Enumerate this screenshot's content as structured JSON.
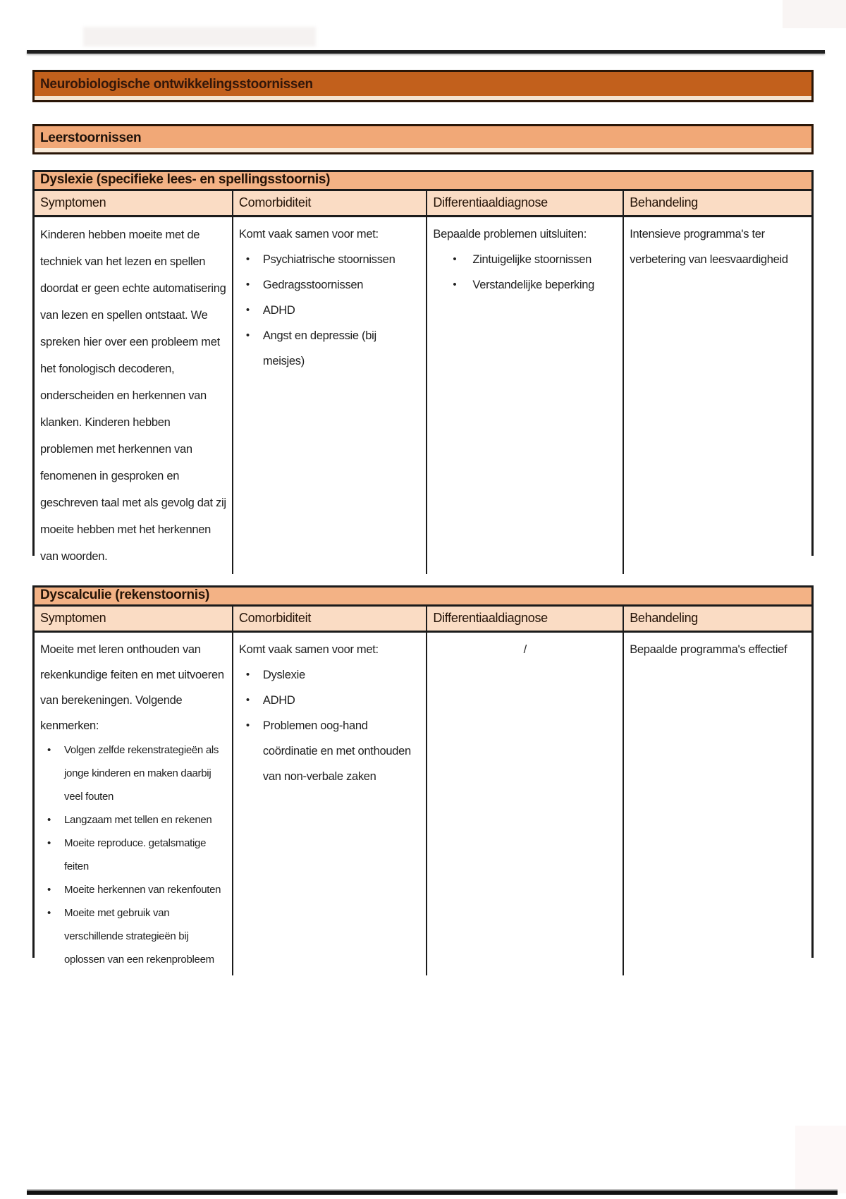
{
  "page": {
    "main_heading": "Neurobiologische ontwikkelingsstoornissen",
    "section_heading": "Leerstoornissen"
  },
  "colors": {
    "main_heading_bg": "#c2601c",
    "section_heading_bg": "#f1a877",
    "table_title_bg": "#f3b285",
    "table_header_bg": "#fadcc4",
    "border_dark": "#1b1b1b",
    "text": "#1f1f1f"
  },
  "tables": [
    {
      "title": "Dyslexie (specifieke lees- en spellingsstoornis)",
      "columns": [
        "Symptomen",
        "Comorbiditeit",
        "Differentiaaldiagnose",
        "Behandeling"
      ],
      "symptomen": {
        "text": "Kinderen hebben moeite met de techniek van het lezen en spellen doordat er geen echte automatisering van lezen en spellen ontstaat. We spreken hier over een probleem met het fonologisch decoderen, onderscheiden en herkennen van klanken. Kinderen hebben problemen met herkennen van fenomenen in gesproken en geschreven taal met als gevolg dat zij moeite hebben met het herkennen van woorden."
      },
      "comorbiditeit": {
        "intro": "Komt vaak samen voor met:",
        "bullets": [
          "Psychiatrische stoornissen",
          "Gedragsstoornissen",
          "ADHD",
          "Angst en depressie (bij meisjes)"
        ]
      },
      "differentiaaldiagnose": {
        "intro": "Bepaalde problemen uitsluiten:",
        "bullets": [
          "Zintuigelijke stoornissen",
          "Verstandelijke beperking"
        ]
      },
      "behandeling": {
        "text": "Intensieve programma's ter verbetering van leesvaardigheid"
      }
    },
    {
      "title": "Dyscalculie (rekenstoornis)",
      "columns": [
        "Symptomen",
        "Comorbiditeit",
        "Differentiaaldiagnose",
        "Behandeling"
      ],
      "symptomen": {
        "intro": "Moeite met leren onthouden van rekenkundige feiten en met uitvoeren van berekeningen. Volgende kenmerken:",
        "bullets": [
          "Volgen zelfde rekenstrategieën als jonge kinderen en maken daarbij veel fouten",
          "Langzaam met tellen en rekenen",
          "Moeite reproduce. getalsmatige feiten",
          "Moeite herkennen van rekenfouten",
          "Moeite met gebruik van verschillende strategieën bij oplossen van een rekenprobleem"
        ]
      },
      "comorbiditeit": {
        "intro": "Komt vaak samen voor met:",
        "bullets": [
          "Dyslexie",
          "ADHD",
          "Problemen oog-hand coördinatie en met onthouden van non-verbale zaken"
        ]
      },
      "differentiaaldiagnose": {
        "text": "/"
      },
      "behandeling": {
        "text": "Bepaalde programma's effectief"
      }
    }
  ],
  "icons": {
    "bullet": "•"
  }
}
